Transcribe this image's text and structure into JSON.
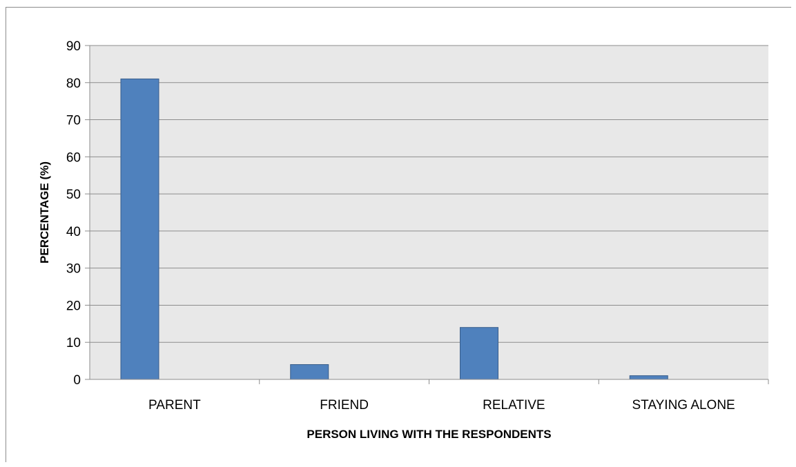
{
  "chart_data": {
    "type": "bar",
    "title": "",
    "xlabel": "PERSON LIVING WITH THE RESPONDENTS",
    "ylabel": "PERCENTAGE (%)",
    "categories": [
      "PARENT",
      "FRIEND",
      "RELATIVE",
      "STAYING ALONE"
    ],
    "values": [
      81,
      4,
      14,
      1
    ],
    "ylim": [
      0,
      90
    ],
    "yticks": [
      0,
      10,
      20,
      30,
      40,
      50,
      60,
      70,
      80,
      90
    ],
    "grid": true,
    "legend": "none",
    "colors": {
      "bar_fill": "#4f81bd",
      "bar_stroke": "#385d8a",
      "plot_background": "#e8e8e8",
      "gridline": "#8c8c8c"
    }
  }
}
